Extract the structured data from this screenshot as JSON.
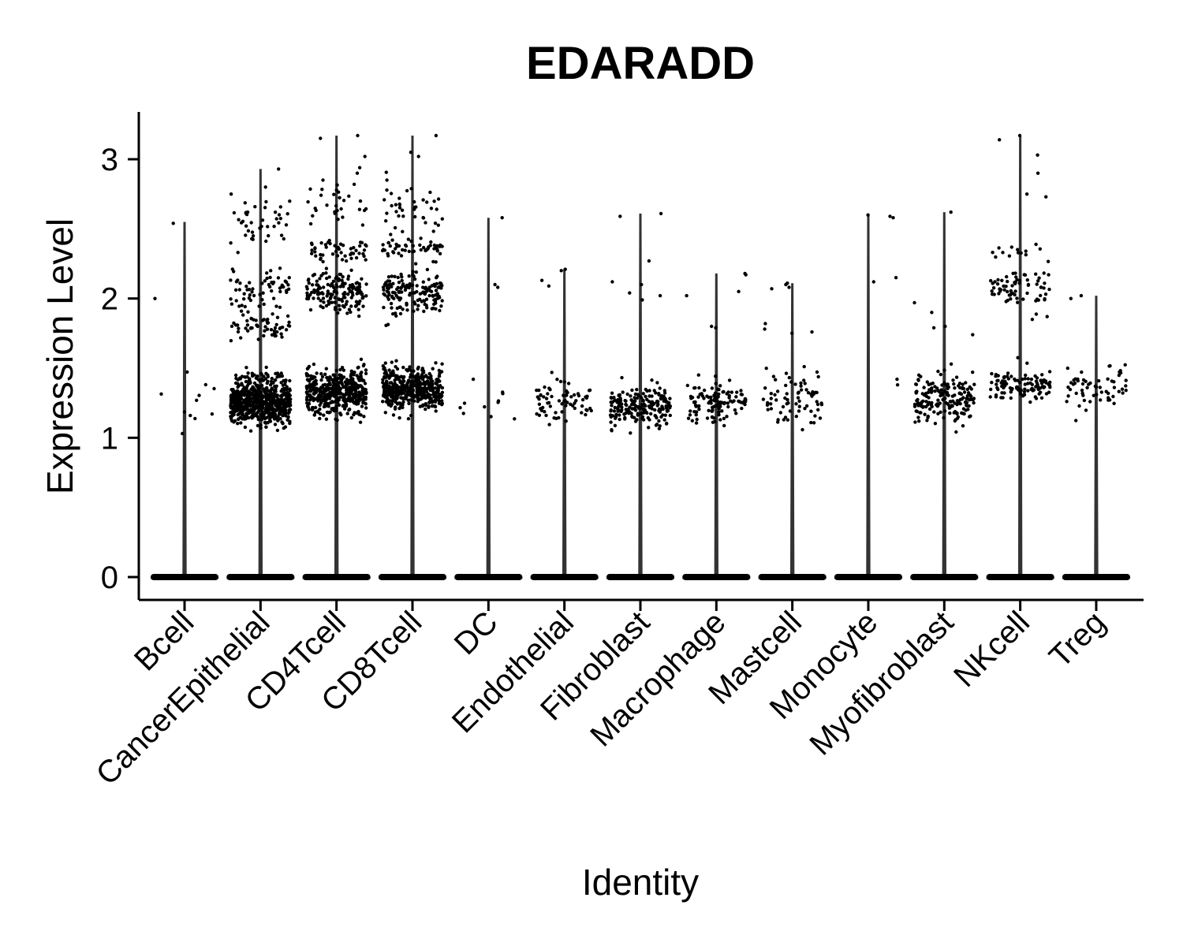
{
  "chart_data": {
    "type": "violin",
    "title": "EDARADD",
    "xlabel": "Identity",
    "ylabel": "Expression Level",
    "ylim": [
      -0.15,
      3.35
    ],
    "yticks": [
      0,
      1,
      2,
      3
    ],
    "grid": false,
    "categories": [
      "Bcell",
      "CancerEpithelial",
      "CD4Tcell",
      "CD8Tcell",
      "DC",
      "Endothelial",
      "Fibroblast",
      "Macrophage",
      "Mastcell",
      "Monocyte",
      "Myofibroblast",
      "NKcell",
      "Treg"
    ],
    "max_values": [
      2.55,
      2.93,
      3.17,
      3.17,
      2.58,
      2.21,
      2.61,
      2.18,
      2.11,
      2.6,
      2.62,
      3.17,
      2.02
    ],
    "point_clusters": [
      {
        "category": "Bcell",
        "clusters": [
          {
            "center": 1.25,
            "spread": 0.08,
            "n": 10
          }
        ],
        "outliers": [
          2.54,
          2.0,
          1.03
        ]
      },
      {
        "category": "CancerEpithelial",
        "clusters": [
          {
            "center": 1.25,
            "spread": 0.07,
            "n": 600
          },
          {
            "center": 1.42,
            "spread": 0.04,
            "n": 60
          },
          {
            "center": 1.8,
            "spread": 0.05,
            "n": 60
          },
          {
            "center": 2.05,
            "spread": 0.08,
            "n": 60
          },
          {
            "center": 2.55,
            "spread": 0.1,
            "n": 40
          }
        ],
        "outliers": [
          2.93,
          2.8,
          2.75
        ]
      },
      {
        "category": "CD4Tcell",
        "clusters": [
          {
            "center": 1.33,
            "spread": 0.08,
            "n": 450
          },
          {
            "center": 2.05,
            "spread": 0.08,
            "n": 160
          },
          {
            "center": 2.35,
            "spread": 0.04,
            "n": 50
          },
          {
            "center": 2.7,
            "spread": 0.12,
            "n": 30
          }
        ],
        "outliers": [
          3.17,
          3.15,
          3.02,
          2.9,
          2.85
        ]
      },
      {
        "category": "CD8Tcell",
        "clusters": [
          {
            "center": 1.35,
            "spread": 0.08,
            "n": 450
          },
          {
            "center": 2.05,
            "spread": 0.08,
            "n": 160
          },
          {
            "center": 2.37,
            "spread": 0.03,
            "n": 50
          },
          {
            "center": 2.65,
            "spread": 0.1,
            "n": 40
          }
        ],
        "outliers": [
          3.17,
          3.05,
          3.02,
          2.85
        ]
      },
      {
        "category": "DC",
        "clusters": [
          {
            "center": 1.25,
            "spread": 0.07,
            "n": 10
          }
        ],
        "outliers": [
          2.58,
          2.1,
          2.08,
          1.42
        ]
      },
      {
        "category": "Endothelial",
        "clusters": [
          {
            "center": 1.25,
            "spread": 0.08,
            "n": 70
          }
        ],
        "outliers": [
          2.21,
          2.13,
          2.2,
          2.09
        ]
      },
      {
        "category": "Fibroblast",
        "clusters": [
          {
            "center": 1.23,
            "spread": 0.07,
            "n": 220
          }
        ],
        "outliers": [
          2.61,
          2.59,
          2.27,
          2.12,
          2.1,
          2.04,
          2.02,
          1.99
        ]
      },
      {
        "category": "Macrophage",
        "clusters": [
          {
            "center": 1.25,
            "spread": 0.07,
            "n": 120
          }
        ],
        "outliers": [
          2.18,
          2.17,
          2.05,
          2.02,
          1.8,
          1.79
        ]
      },
      {
        "category": "Mastcell",
        "clusters": [
          {
            "center": 1.28,
            "spread": 0.09,
            "n": 70
          }
        ],
        "outliers": [
          2.11,
          2.1,
          2.08,
          2.07,
          1.82,
          1.78,
          1.76,
          1.75
        ]
      },
      {
        "category": "Monocyte",
        "clusters": [],
        "outliers": [
          2.6,
          2.59,
          2.58,
          2.15,
          2.12,
          1.42,
          1.38
        ]
      },
      {
        "category": "Myofibroblast",
        "clusters": [
          {
            "center": 1.28,
            "spread": 0.09,
            "n": 180
          }
        ],
        "outliers": [
          2.62,
          1.97,
          1.9,
          1.8,
          1.79,
          1.74
        ]
      },
      {
        "category": "NKcell",
        "clusters": [
          {
            "center": 1.38,
            "spread": 0.06,
            "n": 110
          },
          {
            "center": 2.08,
            "spread": 0.06,
            "n": 70
          },
          {
            "center": 2.35,
            "spread": 0.03,
            "n": 12
          }
        ],
        "outliers": [
          3.17,
          3.14,
          3.03,
          2.9,
          2.75,
          2.73,
          1.87,
          1.85
        ]
      },
      {
        "category": "Treg",
        "clusters": [
          {
            "center": 1.35,
            "spread": 0.08,
            "n": 60
          }
        ],
        "outliers": [
          2.02,
          2.0
        ]
      }
    ],
    "zero_line_at": 0
  }
}
